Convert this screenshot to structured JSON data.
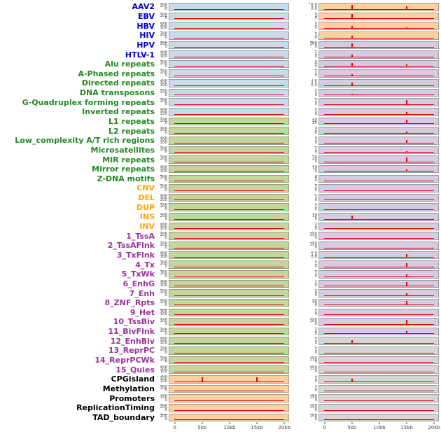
{
  "chart_data": {
    "type": "line",
    "title": "",
    "xlabel": "",
    "ylabel": "",
    "x_ticks": [
      "0",
      "5kb",
      "10kb",
      "15kb",
      "20kb"
    ],
    "x_range_note": "density profiles across a 0-20kb window, two panel columns per feature, red density trace with spikes",
    "rows": [
      {
        "label": "AAV2",
        "group": "virus",
        "lbg": "blue",
        "lt": [
          "400",
          "200",
          "0"
        ],
        "ls": [],
        "rbg": "orange",
        "rt": [
          "10.0",
          "5.0",
          "0.0"
        ],
        "rs": [
          [
            "5kb",
            0.85
          ],
          [
            "15kb",
            0.6
          ]
        ]
      },
      {
        "label": "EBV",
        "group": "virus",
        "lbg": "blue",
        "lt": [
          "400",
          "200",
          "0"
        ],
        "ls": [],
        "rbg": "orange",
        "rt": [
          "6",
          "3",
          "0"
        ],
        "rs": [
          [
            "5kb",
            0.9
          ]
        ]
      },
      {
        "label": "HBV",
        "group": "virus",
        "lbg": "blue",
        "lt": [
          "500",
          "300",
          "100"
        ],
        "ls": [],
        "rbg": "orange",
        "rt": [
          "4",
          "2",
          "0"
        ],
        "rs": [
          [
            "5kb",
            0.5
          ],
          [
            "15kb",
            0.25
          ]
        ]
      },
      {
        "label": "HIV",
        "group": "virus",
        "lbg": "blue",
        "lt": [
          "400",
          "200",
          "0"
        ],
        "ls": [],
        "rbg": "orange",
        "rt": [
          "2",
          "1",
          "0"
        ],
        "rs": [
          [
            "5kb",
            0.4
          ]
        ]
      },
      {
        "label": "HPV",
        "group": "virus",
        "lbg": "blue",
        "lt": [
          "400",
          "200",
          "0"
        ],
        "ls": [],
        "rbg": "purple",
        "rt": [
          "400",
          "200",
          "0"
        ],
        "rs": [
          [
            "5kb",
            0.8
          ]
        ]
      },
      {
        "label": "HTLV-1",
        "group": "virus",
        "lbg": "blue",
        "lt": [
          "500",
          "300",
          "100"
        ],
        "ls": [],
        "rbg": "purple",
        "rt": [
          "4",
          "2",
          "0"
        ],
        "rs": [
          [
            "5kb",
            0.55
          ]
        ]
      },
      {
        "label": "Alu repeats",
        "group": "repeat",
        "lbg": "blue",
        "lt": [
          "400",
          "200",
          "0"
        ],
        "ls": [],
        "rbg": "purple",
        "rt": [
          "8",
          "4",
          "0"
        ],
        "rs": [
          [
            "5kb",
            0.75
          ],
          [
            "15kb",
            0.4
          ]
        ]
      },
      {
        "label": "A-Phased repeats",
        "group": "repeat",
        "lbg": "blue",
        "lt": [
          "400",
          "200",
          "0"
        ],
        "ls": [],
        "rbg": "purple",
        "rt": [
          "4",
          "2",
          "0"
        ],
        "rs": [
          [
            "5kb",
            0.35
          ]
        ]
      },
      {
        "label": "Directed repeats",
        "group": "repeat",
        "lbg": "blue",
        "lt": [
          "500",
          "300",
          "100"
        ],
        "ls": [],
        "rbg": "purple",
        "rt": [
          "5.0",
          "2.5",
          "0.0"
        ],
        "rs": [
          [
            "5kb",
            0.6
          ]
        ]
      },
      {
        "label": "DNA transposons",
        "group": "repeat",
        "lbg": "blue",
        "lt": [
          "400",
          "200",
          "0"
        ],
        "ls": [],
        "rbg": "purple",
        "rt": [
          "2",
          "1",
          "0"
        ],
        "rs": [
          [
            "5kb",
            0.3
          ]
        ]
      },
      {
        "label": "G-Quadruplex forming repeats",
        "group": "repeat",
        "lbg": "blue",
        "lt": [
          "400",
          "200",
          "0"
        ],
        "ls": [],
        "rbg": "purple",
        "rt": [
          "4",
          "2",
          "0"
        ],
        "rs": [
          [
            "15kb",
            0.85
          ]
        ]
      },
      {
        "label": "Inverted repeats",
        "group": "repeat",
        "lbg": "blue",
        "lt": [
          "500",
          "300",
          "100"
        ],
        "ls": [],
        "rbg": "purple",
        "rt": [
          "2",
          "1",
          "0"
        ],
        "rs": [
          [
            "15kb",
            0.45
          ]
        ]
      },
      {
        "label": "L1 repeats",
        "group": "repeat",
        "lbg": "green",
        "lt": [
          "400",
          "200",
          "0"
        ],
        "ls": [],
        "rbg": "purple",
        "rt": [
          "75",
          "50",
          "25"
        ],
        "rs": [
          [
            "15kb",
            0.8
          ]
        ]
      },
      {
        "label": "L2 repeats",
        "group": "repeat",
        "lbg": "green",
        "lt": [
          "400",
          "200",
          "0"
        ],
        "ls": [],
        "rbg": "purple",
        "rt": [
          "4",
          "2",
          "0"
        ],
        "rs": [
          [
            "15kb",
            0.4
          ]
        ]
      },
      {
        "label": "Low_complexity A/T rich regions",
        "group": "repeat",
        "lbg": "green",
        "lt": [
          "500",
          "300",
          "100"
        ],
        "ls": [],
        "rbg": "purple",
        "rt": [
          "6",
          "3",
          "0"
        ],
        "rs": [
          [
            "15kb",
            0.65
          ]
        ]
      },
      {
        "label": "Microsatellites",
        "group": "repeat",
        "lbg": "green",
        "lt": [
          "400",
          "200",
          "0"
        ],
        "ls": [],
        "rbg": "purple",
        "rt": [
          "4",
          "2",
          "0"
        ],
        "rs": [
          [
            "15kb",
            0.35
          ]
        ]
      },
      {
        "label": "MIR repeats",
        "group": "repeat",
        "lbg": "green",
        "lt": [
          "400",
          "200",
          "0"
        ],
        "ls": [],
        "rbg": "purple",
        "rt": [
          "40",
          "20",
          "0"
        ],
        "rs": [
          [
            "15kb",
            0.85
          ]
        ]
      },
      {
        "label": "Mirror repeats",
        "group": "repeat",
        "lbg": "green",
        "lt": [
          "500",
          "300",
          "100"
        ],
        "ls": [],
        "rbg": "purple",
        "rt": [
          "20",
          "10",
          "0"
        ],
        "rs": [
          [
            "15kb",
            0.45
          ]
        ]
      },
      {
        "label": "Z-DNA motifs",
        "group": "repeat",
        "lbg": "green",
        "lt": [
          "400",
          "200",
          "0"
        ],
        "ls": [],
        "rbg": "purple",
        "rt": [
          "8",
          "4",
          "0"
        ],
        "rs": []
      },
      {
        "label": "CNV",
        "group": "sv",
        "lbg": "green",
        "lt": [
          "400",
          "200",
          "0"
        ],
        "ls": [],
        "rbg": "purple",
        "rt": [
          "4",
          "2",
          "0"
        ],
        "rs": []
      },
      {
        "label": "DEL",
        "group": "sv",
        "lbg": "green",
        "lt": [
          "500",
          "300",
          "100"
        ],
        "ls": [],
        "rbg": "purple",
        "rt": [
          "2",
          "1",
          "0"
        ],
        "rs": []
      },
      {
        "label": "DUP",
        "group": "sv",
        "lbg": "green",
        "lt": [
          "400",
          "200",
          "0"
        ],
        "ls": [],
        "rbg": "purple",
        "rt": [
          "2",
          "1",
          "0"
        ],
        "rs": []
      },
      {
        "label": "INS",
        "group": "sv",
        "lbg": "green",
        "lt": [
          "400",
          "200",
          "0"
        ],
        "ls": [],
        "rbg": "purple",
        "rt": [
          "15",
          "10",
          "5"
        ],
        "rs": [
          [
            "5kb",
            0.75
          ]
        ]
      },
      {
        "label": "INV",
        "group": "sv",
        "lbg": "green",
        "lt": [
          "500",
          "300",
          "100"
        ],
        "ls": [],
        "rbg": "purple",
        "rt": [
          "4",
          "2",
          "0"
        ],
        "rs": []
      },
      {
        "label": "1_TssA",
        "group": "chromhmm",
        "lbg": "green",
        "lt": [
          "400",
          "200",
          "0"
        ],
        "ls": [],
        "rbg": "purple",
        "rt": [
          "300",
          "150",
          "0"
        ],
        "rs": []
      },
      {
        "label": "2_TssAFlnk",
        "group": "chromhmm",
        "lbg": "green",
        "lt": [
          "400",
          "200",
          "0"
        ],
        "ls": [],
        "rbg": "purple",
        "rt": [
          "300",
          "150",
          "0"
        ],
        "rs": []
      },
      {
        "label": "3_TxFlnk",
        "group": "chromhmm",
        "lbg": "green",
        "lt": [
          "500",
          "300",
          "100"
        ],
        "ls": [],
        "rbg": "purple",
        "rt": [
          "2.0",
          "1.0",
          "0.0"
        ],
        "rs": [
          [
            "15kb",
            0.7
          ]
        ]
      },
      {
        "label": "4_Tx",
        "group": "chromhmm",
        "lbg": "green",
        "lt": [
          "400",
          "200",
          "0"
        ],
        "ls": [],
        "rbg": "purple",
        "rt": [
          "2",
          "1",
          "0"
        ],
        "rs": [
          [
            "15kb",
            0.8
          ]
        ]
      },
      {
        "label": "5_TxWk",
        "group": "chromhmm",
        "lbg": "green",
        "lt": [
          "400",
          "200",
          "0"
        ],
        "ls": [],
        "rbg": "purple",
        "rt": [
          "4",
          "2",
          "0"
        ],
        "rs": [
          [
            "15kb",
            0.5
          ]
        ]
      },
      {
        "label": "6_EnhG",
        "group": "chromhmm",
        "lbg": "green",
        "lt": [
          "500",
          "300",
          "100"
        ],
        "ls": [],
        "rbg": "purple",
        "rt": [
          "2",
          "1",
          "0"
        ],
        "rs": [
          [
            "15kb",
            0.8
          ]
        ]
      },
      {
        "label": "7_Enh",
        "group": "chromhmm",
        "lbg": "green",
        "lt": [
          "400",
          "200",
          "0"
        ],
        "ls": [],
        "rbg": "purple",
        "rt": [
          "8",
          "4",
          "0"
        ],
        "rs": [
          [
            "15kb",
            0.5
          ]
        ]
      },
      {
        "label": "8_ZNF_Rpts",
        "group": "chromhmm",
        "lbg": "green",
        "lt": [
          "400",
          "200",
          "0"
        ],
        "ls": [],
        "rbg": "purple",
        "rt": [
          "80",
          "40",
          "0"
        ],
        "rs": [
          [
            "15kb",
            0.8
          ]
        ]
      },
      {
        "label": "9_Het",
        "group": "chromhmm",
        "lbg": "green",
        "lt": [
          "500",
          "300",
          "100"
        ],
        "ls": [],
        "rbg": "purple",
        "rt": [
          "2",
          "1",
          "0"
        ],
        "rs": []
      },
      {
        "label": "10_TssBiv",
        "group": "chromhmm",
        "lbg": "green",
        "lt": [
          "400",
          "200",
          "0"
        ],
        "ls": [],
        "rbg": "purple",
        "rt": [
          "200",
          "100",
          "0"
        ],
        "rs": [
          [
            "15kb",
            0.9
          ]
        ]
      },
      {
        "label": "11_BivFlnk",
        "group": "chromhmm",
        "lbg": "green",
        "lt": [
          "400",
          "200",
          "0"
        ],
        "ls": [],
        "rbg": "purple",
        "rt": [
          "4",
          "2",
          "0"
        ],
        "rs": [
          [
            "15kb",
            0.55
          ]
        ]
      },
      {
        "label": "12_EnhBiv",
        "group": "chromhmm",
        "lbg": "green",
        "lt": [
          "500",
          "300",
          "100"
        ],
        "ls": [],
        "rbg": "gray",
        "rt": [
          "2",
          "1",
          "0"
        ],
        "rs": [
          [
            "5kb",
            0.7
          ]
        ]
      },
      {
        "label": "13_ReprPC",
        "group": "chromhmm",
        "lbg": "green",
        "lt": [
          "400",
          "200",
          "0"
        ],
        "ls": [],
        "rbg": "gray",
        "rt": [
          "2",
          "1",
          "0"
        ],
        "rs": []
      },
      {
        "label": "14_ReprPCWk",
        "group": "chromhmm",
        "lbg": "green",
        "lt": [
          "400",
          "200",
          "0"
        ],
        "ls": [],
        "rbg": "gray",
        "rt": [
          "300",
          "150",
          "0"
        ],
        "rs": []
      },
      {
        "label": "15_Quies",
        "group": "chromhmm",
        "lbg": "green",
        "lt": [
          "500",
          "300",
          "100"
        ],
        "ls": [],
        "rbg": "gray",
        "rt": [
          "300",
          "150",
          "0"
        ],
        "rs": []
      },
      {
        "label": "CPGisland",
        "group": "other",
        "lbg": "orange",
        "lt": [
          "300",
          "200",
          "100"
        ],
        "ls": [
          [
            "5kb",
            0.88
          ],
          [
            "15kb",
            0.82
          ]
        ],
        "rbg": "gray",
        "rt": [
          "2",
          "1",
          "0"
        ],
        "rs": [
          [
            "5kb",
            0.6
          ]
        ]
      },
      {
        "label": "Methylation",
        "group": "other",
        "lbg": "orange",
        "lt": [
          "400",
          "200",
          "0"
        ],
        "ls": [],
        "rbg": "gray",
        "rt": [
          "2",
          "1",
          "0"
        ],
        "rs": []
      },
      {
        "label": "Promoters",
        "group": "other",
        "lbg": "orange",
        "lt": [
          "300",
          "150",
          "0"
        ],
        "ls": [],
        "rbg": "gray",
        "rt": [
          "300",
          "150",
          "0"
        ],
        "rs": []
      },
      {
        "label": "ReplicationTiming",
        "group": "other",
        "lbg": "orange",
        "lt": [
          "400",
          "200",
          "0"
        ],
        "ls": [],
        "rbg": "gray",
        "rt": [
          "300",
          "150",
          "0"
        ],
        "rs": []
      },
      {
        "label": "TAD_boundary",
        "group": "other",
        "lbg": "orange",
        "lt": [
          "400",
          "200",
          "0"
        ],
        "ls": [],
        "rbg": "gray",
        "rt": [
          "300",
          "150",
          "0"
        ],
        "rs": []
      }
    ]
  },
  "colors": {
    "red": "#e60000",
    "label": {
      "virus": "#0000cc",
      "repeat": "#228B22",
      "sv": "#ffa500",
      "chromhmm": "#993399",
      "other": "#000000"
    },
    "panel": {
      "blue": "#c9daea",
      "green": "#c3d69b",
      "orange": "#fdd0a2",
      "purple": "#d5cbe2",
      "gray": "#d6d6d6"
    }
  }
}
